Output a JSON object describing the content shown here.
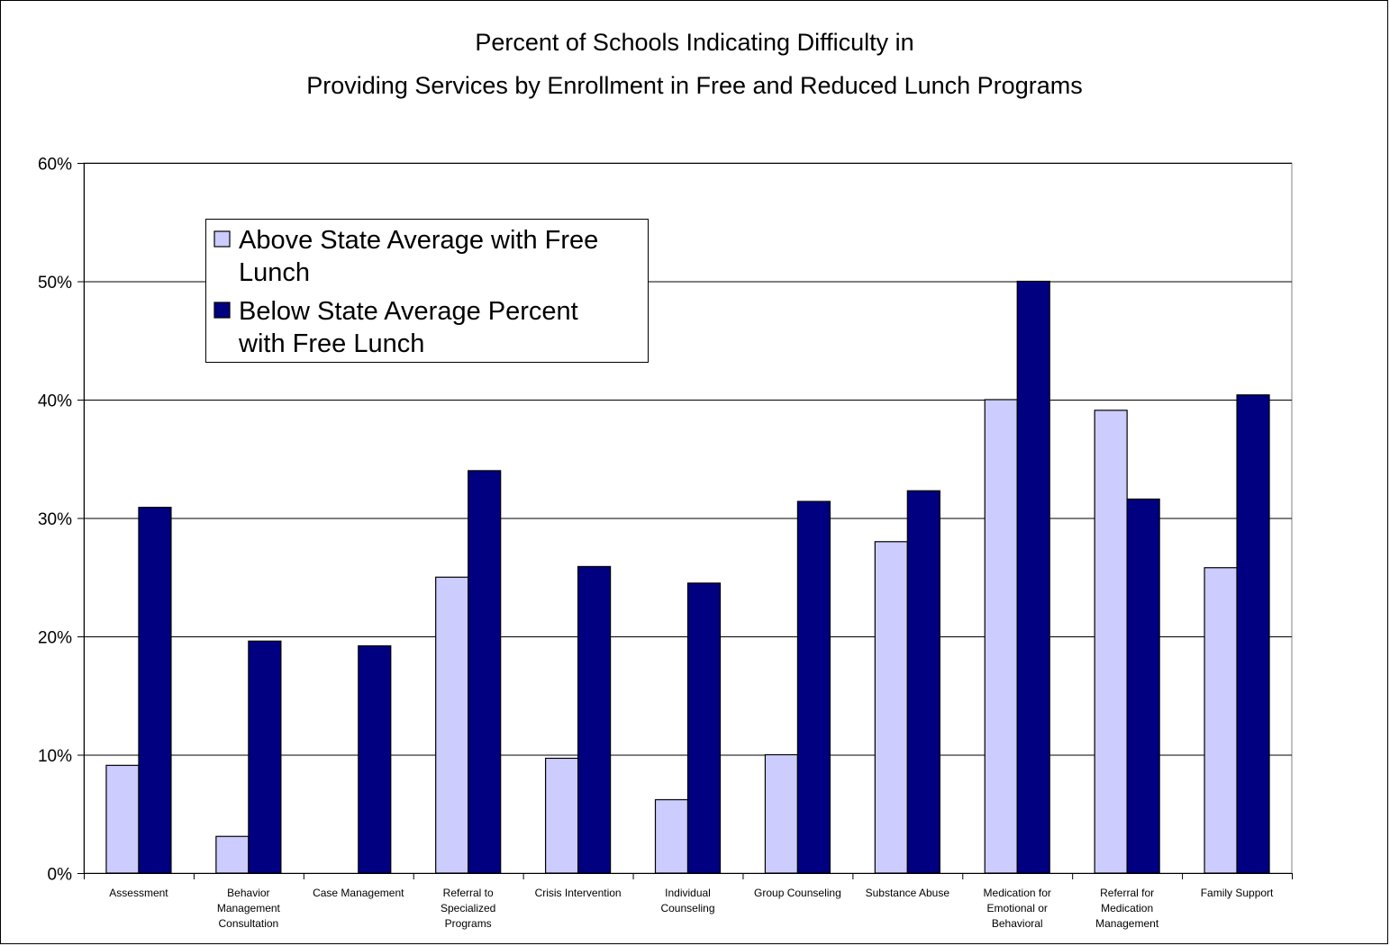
{
  "chart_data": {
    "type": "bar",
    "title_lines": [
      "Percent of Schools Indicating Difficulty in",
      "Providing Services by Enrollment in Free and Reduced Lunch Programs"
    ],
    "xlabel": "",
    "ylabel": "",
    "ylim": [
      0,
      60
    ],
    "y_ticks": [
      "0%",
      "10%",
      "20%",
      "30%",
      "40%",
      "50%",
      "60%"
    ],
    "y_tick_values": [
      0,
      10,
      20,
      30,
      40,
      50,
      60
    ],
    "grid": true,
    "legend_placement": "top-left",
    "categories": [
      [
        "Assessment"
      ],
      [
        "Behavior",
        "Management",
        "Consultation"
      ],
      [
        "Case Management"
      ],
      [
        "Referral to",
        "Specialized",
        "Programs"
      ],
      [
        "Crisis Intervention"
      ],
      [
        "Individual",
        "Counseling"
      ],
      [
        "Group Counseling"
      ],
      [
        "Substance Abuse"
      ],
      [
        "Medication for",
        "Emotional or",
        "Behavioral"
      ],
      [
        "Referral for",
        "Medication",
        "Management"
      ],
      [
        "Family Support"
      ]
    ],
    "series": [
      {
        "name_lines": [
          "Above State Average with Free",
          "Lunch"
        ],
        "color": "#ccccff",
        "values": [
          9.1,
          3.1,
          0,
          25.0,
          9.7,
          6.2,
          10.0,
          28.0,
          40.0,
          39.1,
          25.8
        ]
      },
      {
        "name_lines": [
          "Below State Average Percent",
          "with Free Lunch"
        ],
        "color": "#000080",
        "values": [
          30.9,
          19.6,
          19.2,
          34.0,
          25.9,
          24.5,
          31.4,
          32.3,
          50.0,
          31.6,
          40.4
        ]
      }
    ]
  }
}
